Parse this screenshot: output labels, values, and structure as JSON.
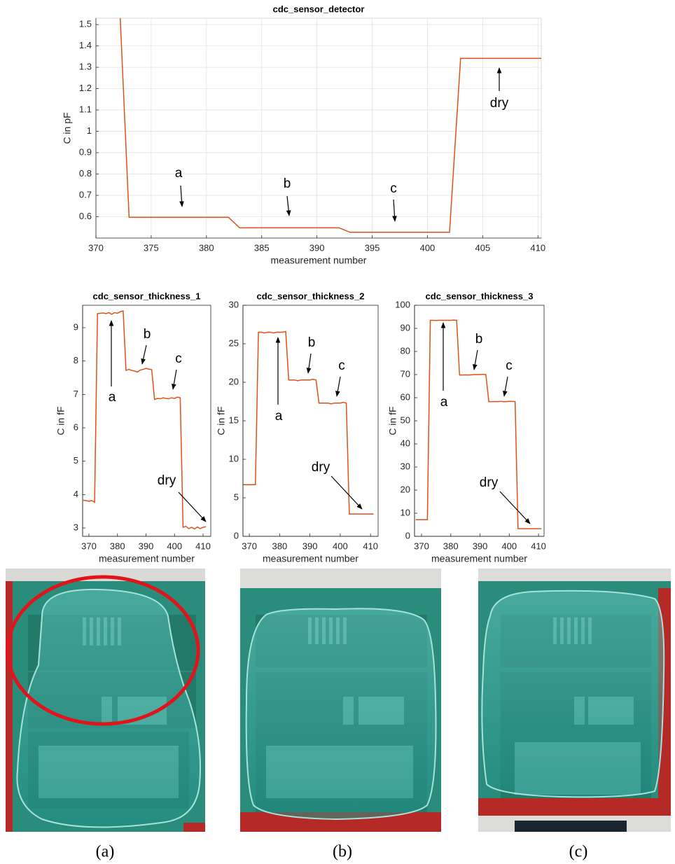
{
  "chart_data": [
    {
      "type": "line",
      "title": "cdc_sensor_detector",
      "x_label": "measurement number",
      "y_label": "C in pF",
      "x": [
        372.2,
        373,
        382,
        383,
        392,
        393,
        402,
        403,
        410.3
      ],
      "values": [
        1.53,
        0.597,
        0.597,
        0.548,
        0.548,
        0.527,
        0.527,
        1.342,
        1.342
      ],
      "color": "#d95319",
      "xlim": [
        370,
        410.3
      ],
      "ylim": [
        0.5,
        1.53
      ],
      "xticks": [
        370,
        375,
        380,
        385,
        390,
        395,
        400,
        405,
        410
      ],
      "yticks": [
        0.6,
        0.7,
        0.8,
        0.9,
        1,
        1.1,
        1.2,
        1.3,
        1.4,
        1.5
      ],
      "grid": true,
      "annotations": [
        "a",
        "b",
        "c",
        "dry"
      ]
    },
    {
      "type": "line",
      "title": "cdc_sensor_thickness_1",
      "x_label": "measurement number",
      "y_label": "C in fF",
      "x": [
        368,
        369,
        370,
        371,
        372,
        373,
        374,
        375,
        376,
        377,
        378,
        379,
        380,
        381,
        382,
        383,
        384,
        385,
        386,
        387,
        388,
        389,
        390,
        391,
        392,
        393,
        394,
        395,
        396,
        397,
        398,
        399,
        400,
        401,
        402,
        403,
        404,
        405,
        406,
        407,
        408,
        409,
        410,
        411
      ],
      "values": [
        3.83,
        3.82,
        3.8,
        3.82,
        3.77,
        9.42,
        9.43,
        9.44,
        9.42,
        9.45,
        9.4,
        9.45,
        9.43,
        9.48,
        9.5,
        7.72,
        7.75,
        7.72,
        7.7,
        7.67,
        7.73,
        7.75,
        7.78,
        7.76,
        7.74,
        6.85,
        6.88,
        6.87,
        6.9,
        6.88,
        6.87,
        6.9,
        6.88,
        6.92,
        6.9,
        3.02,
        3.05,
        2.98,
        3.02,
        2.97,
        3.03,
        2.98,
        3.02,
        3.04
      ],
      "color": "#d95319",
      "xlim": [
        367.8,
        412.7
      ],
      "ylim": [
        2.75,
        9.67
      ],
      "xticks": [
        370,
        380,
        390,
        400,
        410
      ],
      "yticks": [
        3,
        4,
        5,
        6,
        7,
        8,
        9
      ],
      "grid": false,
      "annotations": [
        "a",
        "b",
        "c",
        "dry"
      ]
    },
    {
      "type": "line",
      "title": "cdc_sensor_thickness_2",
      "x_label": "measurement number",
      "y_label": "C in fF",
      "x": [
        368,
        369,
        370,
        371,
        372,
        373,
        374,
        375,
        376,
        377,
        378,
        379,
        380,
        381,
        382,
        383,
        384,
        385,
        386,
        387,
        388,
        389,
        390,
        391,
        392,
        393,
        394,
        395,
        396,
        397,
        398,
        399,
        400,
        401,
        402,
        403,
        404,
        405,
        406,
        407,
        408,
        409,
        410,
        411
      ],
      "values": [
        6.7,
        6.7,
        6.7,
        6.7,
        6.7,
        26.5,
        26.5,
        26.4,
        26.5,
        26.5,
        26.4,
        26.5,
        26.5,
        26.5,
        26.6,
        20.3,
        20.3,
        20.3,
        20.2,
        20.3,
        20.3,
        20.3,
        20.3,
        20.4,
        20.3,
        17.3,
        17.3,
        17.3,
        17.3,
        17.2,
        17.3,
        17.3,
        17.3,
        17.4,
        17.3,
        2.9,
        2.9,
        2.9,
        2.9,
        2.9,
        2.9,
        2.9,
        2.9,
        2.9
      ],
      "color": "#d95319",
      "xlim": [
        367.9,
        412.5
      ],
      "ylim": [
        0,
        30
      ],
      "xticks": [
        370,
        380,
        390,
        400,
        410
      ],
      "yticks": [
        0,
        5,
        10,
        15,
        20,
        25,
        30
      ],
      "grid": false,
      "annotations": [
        "a",
        "b",
        "c",
        "dry"
      ]
    },
    {
      "type": "line",
      "title": "cdc_sensor_thickness_3",
      "x_label": "measurement number",
      "y_label": "C in fF",
      "x": [
        368,
        369,
        370,
        371,
        372,
        373,
        374,
        375,
        376,
        377,
        378,
        379,
        380,
        381,
        382,
        383,
        384,
        385,
        386,
        387,
        388,
        389,
        390,
        391,
        392,
        393,
        394,
        395,
        396,
        397,
        398,
        399,
        400,
        401,
        402,
        403,
        404,
        405,
        406,
        407,
        408,
        409,
        410,
        411
      ],
      "values": [
        7.2,
        7.2,
        7.2,
        7.2,
        7.2,
        93.5,
        93.5,
        93.4,
        93.5,
        93.5,
        93.5,
        93.5,
        93.5,
        93.6,
        93.5,
        69.8,
        69.8,
        69.9,
        69.8,
        69.9,
        70,
        70,
        70,
        70.1,
        70,
        58.3,
        58.3,
        58.3,
        58.3,
        58.4,
        58.3,
        58.3,
        58.4,
        58.4,
        58.3,
        3.3,
        3.3,
        3.3,
        3.3,
        3.3,
        3.3,
        3.3,
        3.3,
        3.3
      ],
      "color": "#d95319",
      "xlim": [
        367.6,
        411.9
      ],
      "ylim": [
        0,
        100
      ],
      "xticks": [
        370,
        380,
        390,
        400,
        410
      ],
      "yticks": [
        0,
        10,
        20,
        30,
        40,
        50,
        60,
        70,
        80,
        90,
        100
      ],
      "grid": false,
      "annotations": [
        "a",
        "b",
        "c",
        "dry"
      ]
    }
  ],
  "photo_captions": [
    "(a)",
    "(b)",
    "(c)"
  ]
}
